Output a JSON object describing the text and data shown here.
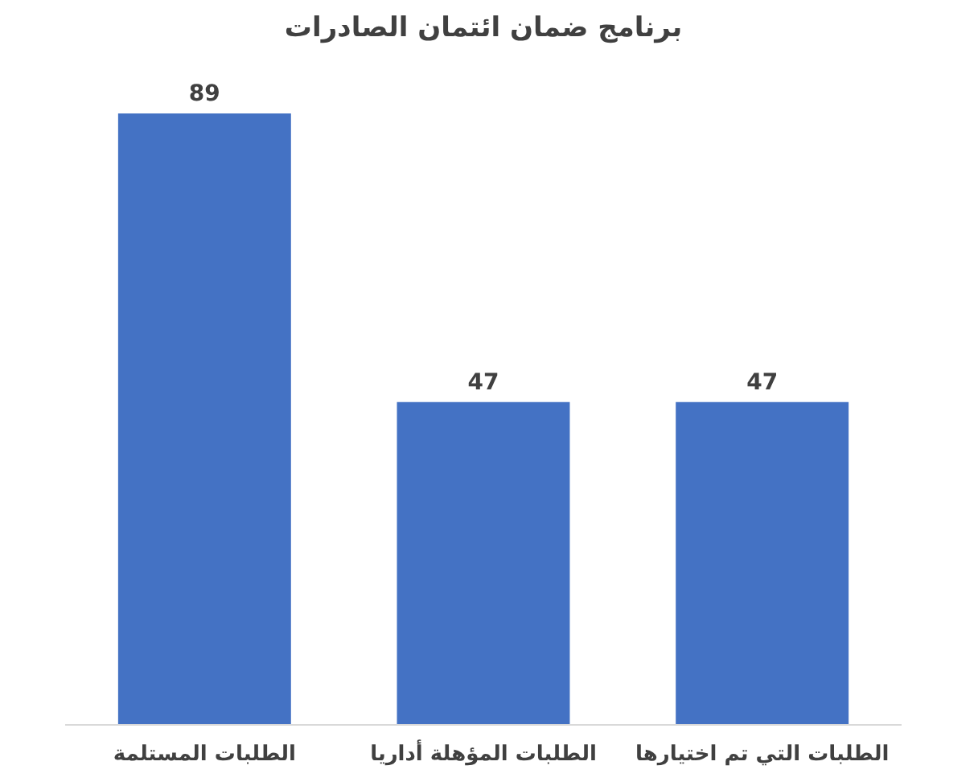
{
  "chart_data": {
    "type": "bar",
    "title": "برنامج ضمان ائتمان الصادرات",
    "categories": [
      "الطلبات المستلمة",
      "الطلبات المؤهلة أداريا",
      "الطلبات التي تم اختيارها"
    ],
    "values": [
      89,
      47,
      47
    ],
    "color": "#4472c4",
    "data_labels": true,
    "grid": false
  }
}
